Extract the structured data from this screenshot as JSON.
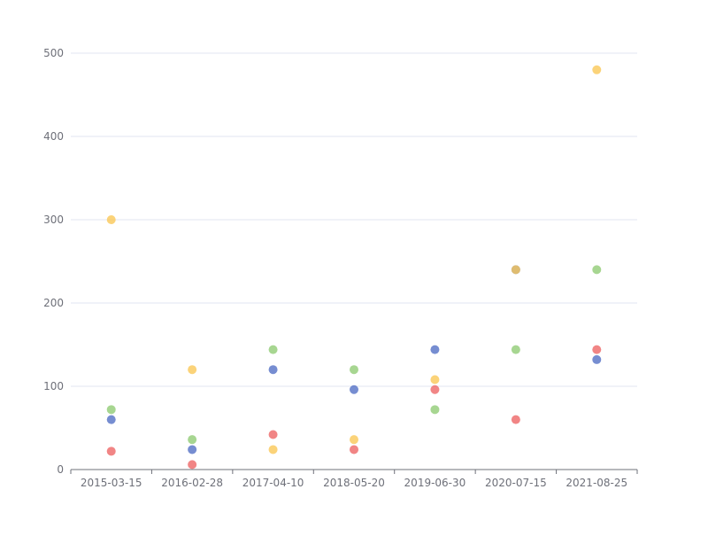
{
  "chart_data": {
    "type": "scatter",
    "categories": [
      "2015-03-15",
      "2016-02-28",
      "2017-04-10",
      "2018-05-20",
      "2019-06-30",
      "2020-07-15",
      "2021-08-25"
    ],
    "ylim": [
      0,
      500
    ],
    "yticks": [
      0,
      100,
      200,
      300,
      400,
      500
    ],
    "grid": true,
    "series": [
      {
        "color": "#5470c6",
        "values": [
          60,
          24,
          120,
          96,
          144,
          240,
          132
        ]
      },
      {
        "color": "#91cc75",
        "values": [
          72,
          36,
          144,
          120,
          72,
          144,
          240
        ]
      },
      {
        "color": "#fac858",
        "values": [
          300,
          120,
          24,
          36,
          108,
          240,
          480
        ]
      },
      {
        "color": "#ee6666",
        "values": [
          22,
          6,
          42,
          24,
          96,
          60,
          144
        ]
      }
    ]
  }
}
